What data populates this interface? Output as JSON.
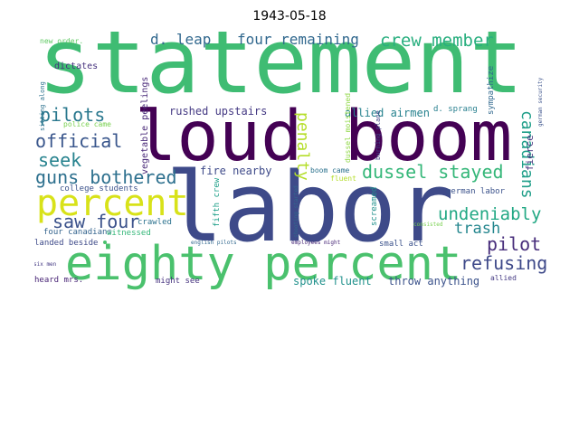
{
  "title": "1943-05-18",
  "words": [
    {
      "id": "statement",
      "text": "statement",
      "color": "#3fbc73"
    },
    {
      "id": "loud-boom",
      "text": "loud boom",
      "color": "#440154"
    },
    {
      "id": "labor",
      "text": "labor",
      "color": "#3e4a89"
    },
    {
      "id": "eighty-percent",
      "text": "eighty percent",
      "color": "#4ac16d"
    },
    {
      "id": "percent",
      "text": "percent",
      "color": "#d8e219"
    },
    {
      "id": "d-leap",
      "text": "d. leap",
      "color": "#31688e"
    },
    {
      "id": "four-remaining",
      "text": "four remaining",
      "color": "#31688e"
    },
    {
      "id": "crew-member",
      "text": "crew member",
      "color": "#29af7f"
    },
    {
      "id": "pilots",
      "text": "pilots",
      "color": "#2a788e"
    },
    {
      "id": "official",
      "text": "official",
      "color": "#39568c"
    },
    {
      "id": "seek",
      "text": "seek",
      "color": "#26828e"
    },
    {
      "id": "guns-bothered",
      "text": "guns bothered",
      "color": "#2d708e"
    },
    {
      "id": "saw-four",
      "text": "saw four",
      "color": "#3b528b"
    },
    {
      "id": "dussel-stayed",
      "text": "dussel stayed",
      "color": "#35b779"
    },
    {
      "id": "undeniably",
      "text": "undeniably",
      "color": "#22a884"
    },
    {
      "id": "trash",
      "text": "trash",
      "color": "#24868e"
    },
    {
      "id": "pilot",
      "text": "pilot",
      "color": "#472d7b"
    },
    {
      "id": "refusing",
      "text": "refusing",
      "color": "#3e4989"
    },
    {
      "id": "canadians",
      "text": "canadians",
      "color": "#1f9e89"
    },
    {
      "id": "penalty",
      "text": "penalty",
      "color": "#b5de2b"
    },
    {
      "id": "rushed-upstairs",
      "text": "rushed upstairs",
      "color": "#443983"
    },
    {
      "id": "allied-airmen",
      "text": "allied airmen",
      "color": "#26828e"
    },
    {
      "id": "fire-nearby",
      "text": "fire nearby",
      "color": "#3e4a89"
    },
    {
      "id": "spoke-fluent",
      "text": "spoke fluent",
      "color": "#21918c"
    },
    {
      "id": "throw-anything",
      "text": "throw anything",
      "color": "#3b528b"
    },
    {
      "id": "vegetable-peelings",
      "text": "vegetable peelings",
      "color": "#482878"
    },
    {
      "id": "dictates",
      "text": "dictates",
      "color": "#46327e"
    },
    {
      "id": "new-order",
      "text": "new order.",
      "color": "#5ec962"
    },
    {
      "id": "sympathize",
      "text": "sympathize",
      "color": "#31688e"
    },
    {
      "id": "d-sprang",
      "text": "d. sprang",
      "color": "#277f8e"
    },
    {
      "id": "fierce",
      "text": "fierce",
      "color": "#46337f"
    },
    {
      "id": "german-security",
      "text": "german security",
      "color": "#3b528b"
    },
    {
      "id": "dussel-moistened",
      "text": "dussel moistened",
      "color": "#8fd744"
    },
    {
      "id": "burning-plane",
      "text": "burning plane",
      "color": "#414487"
    },
    {
      "id": "boom-came",
      "text": "boom came",
      "color": "#2c728e"
    },
    {
      "id": "fluent",
      "text": "fluent",
      "color": "#b5de2b"
    },
    {
      "id": "german-labor",
      "text": "german labor",
      "color": "#3b528b"
    },
    {
      "id": "consisted",
      "text": "consisted",
      "color": "#7ad151"
    },
    {
      "id": "screamed",
      "text": "screamed",
      "color": "#21918c"
    },
    {
      "id": "fifth-crew",
      "text": "fifth crew",
      "color": "#1fa088"
    },
    {
      "id": "shooting-started",
      "text": "shooting started",
      "color": "#31688e"
    },
    {
      "id": "college-students",
      "text": "college students",
      "color": "#3b528b"
    },
    {
      "id": "police-came",
      "text": "police came",
      "color": "#7ad151"
    },
    {
      "id": "sitting-along",
      "text": "sitting along",
      "color": "#2c728e"
    },
    {
      "id": "four-canadians",
      "text": "four canadians",
      "color": "#33638d"
    },
    {
      "id": "witnessed",
      "text": "witnessed",
      "color": "#35b779"
    },
    {
      "id": "crawled",
      "text": "crawled",
      "color": "#2c728e"
    },
    {
      "id": "landed-beside",
      "text": "landed beside",
      "color": "#3e4a89"
    },
    {
      "id": "english-pilots",
      "text": "english pilots",
      "color": "#31688e"
    },
    {
      "id": "employees-might",
      "text": "employees might",
      "color": "#482878"
    },
    {
      "id": "small-act",
      "text": "small act",
      "color": "#3b528b"
    },
    {
      "id": "six-men",
      "text": "six men",
      "color": "#443983"
    },
    {
      "id": "heard-mrs",
      "text": "heard mrs.",
      "color": "#482475"
    },
    {
      "id": "might-see",
      "text": "might see",
      "color": "#46337f"
    },
    {
      "id": "allied",
      "text": "allied",
      "color": "#443983"
    }
  ]
}
